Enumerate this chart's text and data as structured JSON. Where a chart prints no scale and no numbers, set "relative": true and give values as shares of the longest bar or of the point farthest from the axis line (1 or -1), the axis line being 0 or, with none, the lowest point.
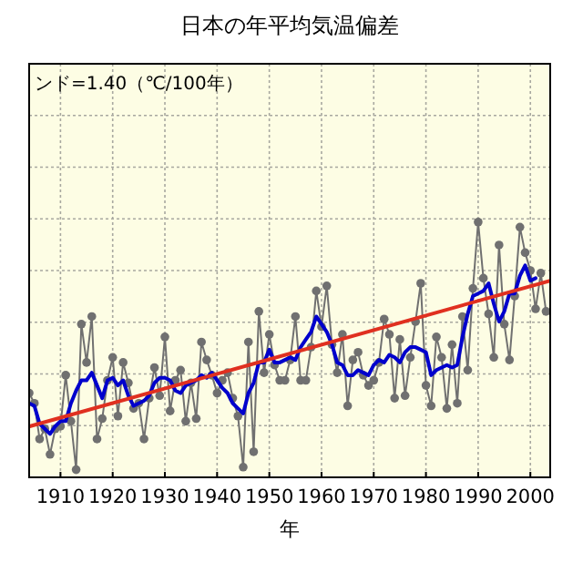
{
  "chart_data": {
    "type": "line",
    "title": "日本の年平均気温偏差",
    "xlabel": "年",
    "relative": true,
    "annotations": [
      "ンド=1.40（℃/100年）"
    ],
    "x": [
      1904,
      1905,
      1906,
      1907,
      1908,
      1909,
      1910,
      1911,
      1912,
      1913,
      1914,
      1915,
      1916,
      1917,
      1918,
      1919,
      1920,
      1921,
      1922,
      1923,
      1924,
      1925,
      1926,
      1927,
      1928,
      1929,
      1930,
      1931,
      1932,
      1933,
      1934,
      1935,
      1936,
      1937,
      1938,
      1939,
      1940,
      1941,
      1942,
      1943,
      1944,
      1945,
      1946,
      1947,
      1948,
      1949,
      1950,
      1951,
      1952,
      1953,
      1954,
      1955,
      1956,
      1957,
      1958,
      1959,
      1960,
      1961,
      1962,
      1963,
      1964,
      1965,
      1966,
      1967,
      1968,
      1969,
      1970,
      1971,
      1972,
      1973,
      1974,
      1975,
      1976,
      1977,
      1978,
      1979,
      1980,
      1981,
      1982,
      1983,
      1984,
      1985,
      1986,
      1987,
      1988,
      1989,
      1990,
      1991,
      1992,
      1993,
      1994,
      1995,
      1996,
      1997,
      1998,
      1999,
      2000,
      2001,
      2002,
      2003
    ],
    "series": [
      {
        "color": "#707070",
        "marker": "circle",
        "values": [
          0.33,
          0.29,
          0.15,
          0.19,
          0.09,
          0.19,
          0.2,
          0.4,
          0.22,
          0.03,
          0.6,
          0.45,
          0.63,
          0.15,
          0.23,
          0.38,
          0.47,
          0.24,
          0.45,
          0.37,
          0.27,
          0.29,
          0.15,
          0.31,
          0.43,
          0.32,
          0.55,
          0.26,
          0.38,
          0.42,
          0.22,
          0.37,
          0.23,
          0.53,
          0.46,
          0.4,
          0.33,
          0.38,
          0.41,
          0.31,
          0.24,
          0.04,
          0.53,
          0.1,
          0.65,
          0.41,
          0.56,
          0.44,
          0.38,
          0.38,
          0.46,
          0.63,
          0.38,
          0.38,
          0.51,
          0.73,
          0.59,
          0.75,
          0.52,
          0.41,
          0.56,
          0.28,
          0.46,
          0.49,
          0.4,
          0.36,
          0.38,
          0.45,
          0.62,
          0.56,
          0.31,
          0.54,
          0.32,
          0.47,
          0.61,
          0.76,
          0.36,
          0.28,
          0.55,
          0.47,
          0.27,
          0.52,
          0.29,
          0.63,
          0.42,
          0.74,
          1.0,
          0.78,
          0.64,
          0.47,
          0.91,
          0.6,
          0.46,
          0.71,
          0.98,
          0.88,
          0.81,
          0.66,
          0.8,
          0.65
        ]
      },
      {
        "color": "#0000cc",
        "marker": "none",
        "values": [
          0.29,
          0.28,
          0.21,
          0.19,
          0.17,
          0.2,
          0.22,
          0.22,
          0.29,
          0.34,
          0.38,
          0.38,
          0.41,
          0.36,
          0.31,
          0.38,
          0.39,
          0.36,
          0.38,
          0.32,
          0.28,
          0.29,
          0.3,
          0.32,
          0.37,
          0.39,
          0.39,
          0.38,
          0.34,
          0.33,
          0.36,
          0.37,
          0.38,
          0.4,
          0.39,
          0.41,
          0.38,
          0.35,
          0.33,
          0.29,
          0.27,
          0.25,
          0.33,
          0.37,
          0.45,
          0.45,
          0.5,
          0.45,
          0.45,
          0.46,
          0.47,
          0.46,
          0.51,
          0.54,
          0.57,
          0.63,
          0.6,
          0.57,
          0.52,
          0.45,
          0.44,
          0.4,
          0.4,
          0.42,
          0.41,
          0.4,
          0.44,
          0.46,
          0.45,
          0.48,
          0.47,
          0.45,
          0.49,
          0.51,
          0.51,
          0.5,
          0.49,
          0.4,
          0.42,
          0.43,
          0.44,
          0.43,
          0.44,
          0.55,
          0.64,
          0.71,
          0.72,
          0.73,
          0.76,
          0.68,
          0.61,
          0.65,
          0.72,
          0.72,
          0.79,
          0.83,
          0.77,
          0.78,
          null,
          null
        ]
      },
      {
        "color": "#e03020",
        "marker": "none",
        "x": [
          1904.1,
          2003.8
        ],
        "values": [
          0.2,
          0.77
        ]
      }
    ],
    "xlim": [
      1904,
      2003.8
    ],
    "xticks": [
      1910,
      1920,
      1930,
      1940,
      1950,
      1960,
      1970,
      1980,
      1990,
      2000
    ],
    "grid": true,
    "tick_labels": "x"
  }
}
